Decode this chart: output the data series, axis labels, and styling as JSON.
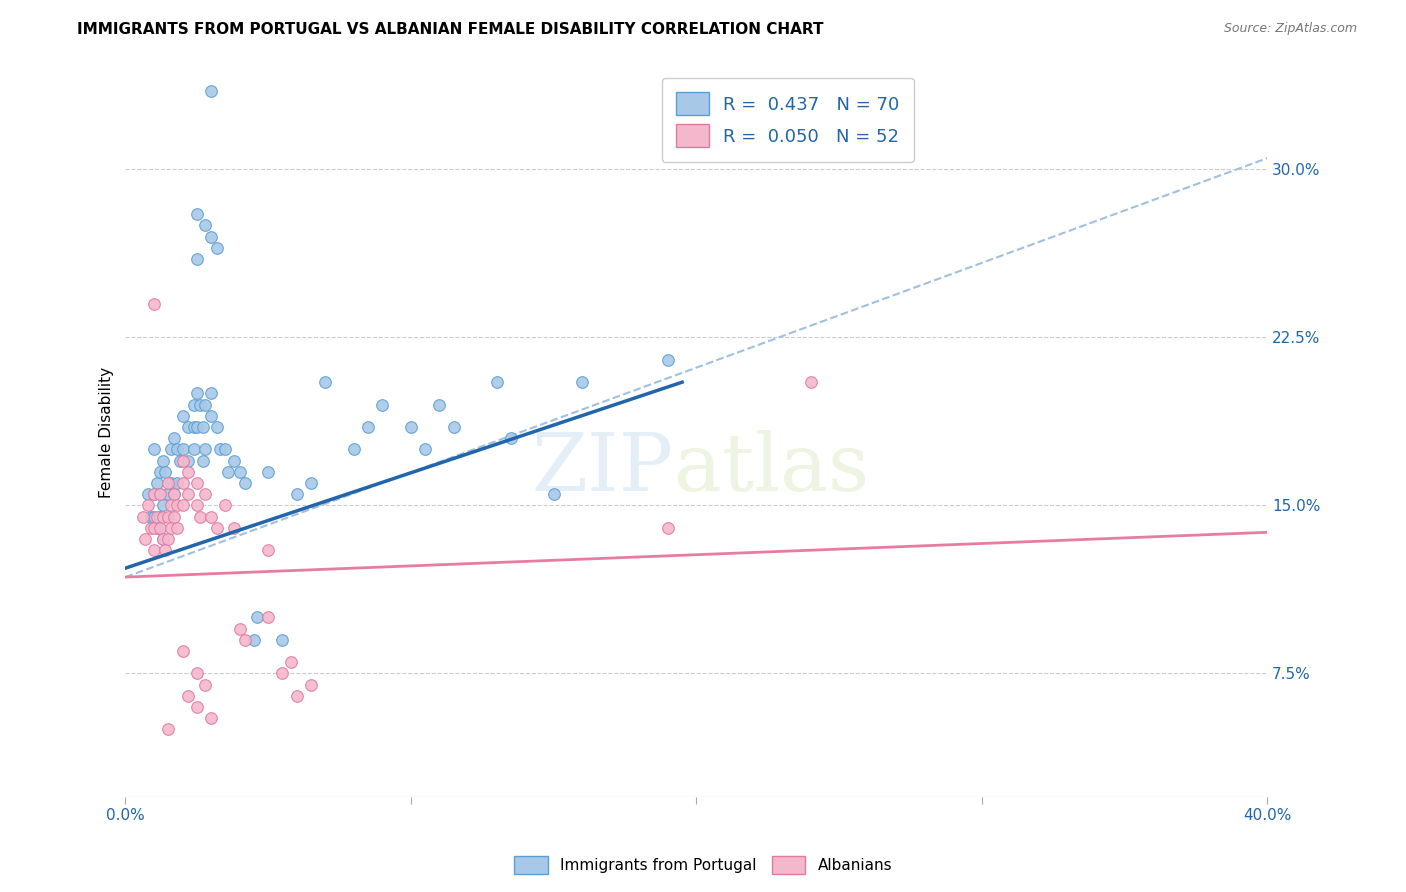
{
  "title": "IMMIGRANTS FROM PORTUGAL VS ALBANIAN FEMALE DISABILITY CORRELATION CHART",
  "source": "Source: ZipAtlas.com",
  "ylabel": "Female Disability",
  "right_yticks": [
    "30.0%",
    "22.5%",
    "15.0%",
    "7.5%"
  ],
  "right_ytick_vals": [
    0.3,
    0.225,
    0.15,
    0.075
  ],
  "watermark_zip": "ZIP",
  "watermark_atlas": "atlas",
  "blue_color": "#a8c8e8",
  "blue_edge_color": "#5a9fd4",
  "pink_color": "#f4b8cc",
  "pink_edge_color": "#e07aa0",
  "trend_blue": "#2166ac",
  "trend_pink": "#e87ca0",
  "trend_dashed_color": "#a0c0e0",
  "blue_scatter": [
    [
      0.008,
      0.155
    ],
    [
      0.009,
      0.145
    ],
    [
      0.01,
      0.155
    ],
    [
      0.01,
      0.175
    ],
    [
      0.01,
      0.145
    ],
    [
      0.011,
      0.16
    ],
    [
      0.011,
      0.14
    ],
    [
      0.012,
      0.165
    ],
    [
      0.012,
      0.155
    ],
    [
      0.012,
      0.145
    ],
    [
      0.013,
      0.17
    ],
    [
      0.013,
      0.15
    ],
    [
      0.013,
      0.135
    ],
    [
      0.014,
      0.165
    ],
    [
      0.015,
      0.155
    ],
    [
      0.016,
      0.175
    ],
    [
      0.016,
      0.16
    ],
    [
      0.017,
      0.18
    ],
    [
      0.017,
      0.155
    ],
    [
      0.018,
      0.175
    ],
    [
      0.018,
      0.16
    ],
    [
      0.019,
      0.17
    ],
    [
      0.02,
      0.19
    ],
    [
      0.02,
      0.175
    ],
    [
      0.022,
      0.185
    ],
    [
      0.022,
      0.17
    ],
    [
      0.024,
      0.195
    ],
    [
      0.024,
      0.185
    ],
    [
      0.024,
      0.175
    ],
    [
      0.025,
      0.2
    ],
    [
      0.025,
      0.185
    ],
    [
      0.026,
      0.195
    ],
    [
      0.027,
      0.185
    ],
    [
      0.027,
      0.17
    ],
    [
      0.028,
      0.195
    ],
    [
      0.028,
      0.175
    ],
    [
      0.03,
      0.2
    ],
    [
      0.03,
      0.19
    ],
    [
      0.032,
      0.185
    ],
    [
      0.033,
      0.175
    ],
    [
      0.035,
      0.175
    ],
    [
      0.036,
      0.165
    ],
    [
      0.038,
      0.17
    ],
    [
      0.04,
      0.165
    ],
    [
      0.042,
      0.16
    ],
    [
      0.045,
      0.09
    ],
    [
      0.046,
      0.1
    ],
    [
      0.05,
      0.165
    ],
    [
      0.055,
      0.09
    ],
    [
      0.06,
      0.155
    ],
    [
      0.065,
      0.16
    ],
    [
      0.07,
      0.205
    ],
    [
      0.08,
      0.175
    ],
    [
      0.085,
      0.185
    ],
    [
      0.09,
      0.195
    ],
    [
      0.1,
      0.185
    ],
    [
      0.105,
      0.175
    ],
    [
      0.11,
      0.195
    ],
    [
      0.115,
      0.185
    ],
    [
      0.13,
      0.205
    ],
    [
      0.135,
      0.18
    ],
    [
      0.15,
      0.155
    ],
    [
      0.16,
      0.205
    ],
    [
      0.19,
      0.215
    ],
    [
      0.025,
      0.28
    ],
    [
      0.028,
      0.275
    ],
    [
      0.03,
      0.27
    ],
    [
      0.03,
      0.335
    ],
    [
      0.032,
      0.265
    ],
    [
      0.025,
      0.26
    ]
  ],
  "pink_scatter": [
    [
      0.006,
      0.145
    ],
    [
      0.007,
      0.135
    ],
    [
      0.008,
      0.15
    ],
    [
      0.009,
      0.14
    ],
    [
      0.01,
      0.155
    ],
    [
      0.01,
      0.14
    ],
    [
      0.01,
      0.13
    ],
    [
      0.011,
      0.145
    ],
    [
      0.012,
      0.155
    ],
    [
      0.012,
      0.14
    ],
    [
      0.013,
      0.145
    ],
    [
      0.013,
      0.135
    ],
    [
      0.014,
      0.13
    ],
    [
      0.015,
      0.16
    ],
    [
      0.015,
      0.145
    ],
    [
      0.015,
      0.135
    ],
    [
      0.016,
      0.15
    ],
    [
      0.016,
      0.14
    ],
    [
      0.017,
      0.155
    ],
    [
      0.017,
      0.145
    ],
    [
      0.018,
      0.15
    ],
    [
      0.018,
      0.14
    ],
    [
      0.02,
      0.17
    ],
    [
      0.02,
      0.16
    ],
    [
      0.02,
      0.15
    ],
    [
      0.022,
      0.165
    ],
    [
      0.022,
      0.155
    ],
    [
      0.025,
      0.16
    ],
    [
      0.025,
      0.15
    ],
    [
      0.026,
      0.145
    ],
    [
      0.028,
      0.155
    ],
    [
      0.03,
      0.145
    ],
    [
      0.032,
      0.14
    ],
    [
      0.035,
      0.15
    ],
    [
      0.038,
      0.14
    ],
    [
      0.04,
      0.095
    ],
    [
      0.042,
      0.09
    ],
    [
      0.05,
      0.1
    ],
    [
      0.055,
      0.075
    ],
    [
      0.058,
      0.08
    ],
    [
      0.06,
      0.065
    ],
    [
      0.065,
      0.07
    ],
    [
      0.01,
      0.24
    ],
    [
      0.19,
      0.14
    ],
    [
      0.24,
      0.205
    ],
    [
      0.05,
      0.13
    ],
    [
      0.025,
      0.075
    ],
    [
      0.022,
      0.065
    ],
    [
      0.025,
      0.06
    ],
    [
      0.03,
      0.055
    ],
    [
      0.02,
      0.085
    ],
    [
      0.028,
      0.07
    ],
    [
      0.015,
      0.05
    ]
  ],
  "blue_trend_x": [
    0.0,
    0.195
  ],
  "blue_trend_y": [
    0.122,
    0.205
  ],
  "pink_trend_x": [
    0.0,
    0.4
  ],
  "pink_trend_y": [
    0.118,
    0.138
  ],
  "dashed_trend_x": [
    0.0,
    0.4
  ],
  "dashed_trend_y": [
    0.118,
    0.305
  ],
  "xmin": 0.0,
  "xmax": 0.4,
  "ymin": 0.02,
  "ymax": 0.345,
  "bottom_legend": [
    "Immigrants from Portugal",
    "Albanians"
  ]
}
